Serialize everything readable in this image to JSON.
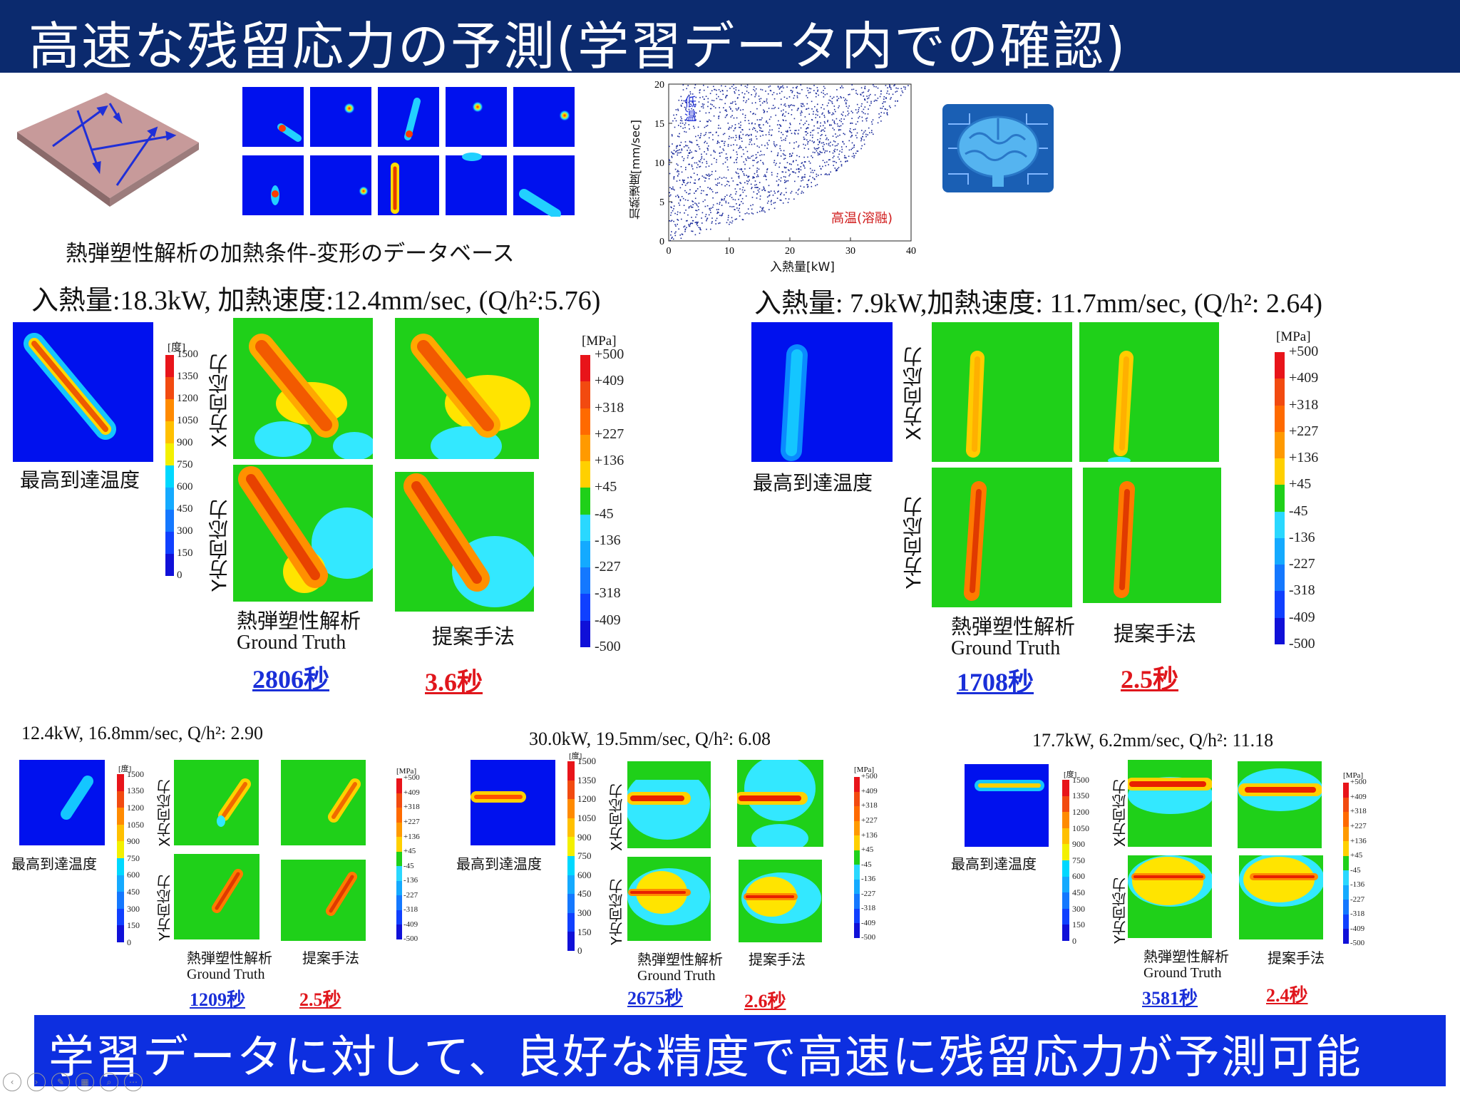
{
  "header": {
    "title": "高速な残留応力の予測(学習データ内での確認)"
  },
  "database": {
    "caption": "熱弾塑性解析の加熱条件-変形のデータベース"
  },
  "scatter": {
    "ylabel": "加熱速度[mm/sec]",
    "xlabel": "入熱量[kW]",
    "low_label": "低温",
    "high_label": "高温(溶融)",
    "xticks": [
      "0",
      "10",
      "20",
      "30",
      "40"
    ],
    "yticks": [
      "0",
      "5",
      "10",
      "15",
      "20"
    ]
  },
  "chart_data": {
    "type": "scatter",
    "xlabel": "入熱量[kW]",
    "ylabel": "加熱速度[mm/sec]",
    "xlim": [
      0,
      40
    ],
    "ylim": [
      0,
      20
    ],
    "xticks": [
      0,
      10,
      20,
      30,
      40
    ],
    "yticks": [
      0,
      5,
      10,
      15,
      20
    ],
    "annotations": [
      "低温",
      "高温(溶融)"
    ],
    "region_lower_bound": [
      [
        0,
        0
      ],
      [
        10,
        2
      ],
      [
        20,
        5
      ],
      [
        30,
        10
      ],
      [
        40,
        20
      ]
    ],
    "region_upper_bound": [
      [
        0,
        14
      ],
      [
        2,
        20
      ],
      [
        40,
        20
      ]
    ]
  },
  "temp_scale": {
    "unit": "[度]",
    "ticks": [
      "1500",
      "1350",
      "1200",
      "1050",
      "900",
      "750",
      "600",
      "450",
      "300",
      "150",
      "0"
    ]
  },
  "stress_scale": {
    "unit": "[MPa]",
    "ticks": [
      "+500",
      "+409",
      "+318",
      "+227",
      "+136",
      "+45",
      "-45",
      "-136",
      "-227",
      "-318",
      "-409",
      "-500"
    ]
  },
  "labels": {
    "max_temp": "最高到達温度",
    "x_stress": "X方向応力",
    "y_stress": "Y方向応力",
    "gt_jp": "熱弾塑性解析",
    "gt_en": "Ground Truth",
    "proposed": "提案手法"
  },
  "case1": {
    "cond": "入熱量:18.3kW, 加熱速度:12.4mm/sec,  (Q/h²:5.76)",
    "gt_time": "2806秒",
    "pred_time": "3.6秒"
  },
  "case2": {
    "cond": "入熱量: 7.9kW,加熱速度: 11.7mm/sec, (Q/h²: 2.64)",
    "gt_time": "1708秒",
    "pred_time": "2.5秒"
  },
  "case3": {
    "cond": "12.4kW, 16.8mm/sec, Q/h²: 2.90",
    "gt_time": "1209秒",
    "pred_time": "2.5秒"
  },
  "case4": {
    "cond": "30.0kW, 19.5mm/sec,  Q/h²: 6.08",
    "gt_time": "2675秒",
    "pred_time": "2.6秒"
  },
  "case5": {
    "cond": "17.7kW, 6.2mm/sec, Q/h²: 11.18",
    "gt_time": "3581秒",
    "pred_time": "2.4秒"
  },
  "footer": {
    "text": "学習データに対して、良好な精度で高速に残留応力が予測可能"
  },
  "nav": {
    "icons": [
      "back-icon",
      "play-icon",
      "pen-icon",
      "slides-icon",
      "zoom-icon",
      "more-icon"
    ]
  }
}
